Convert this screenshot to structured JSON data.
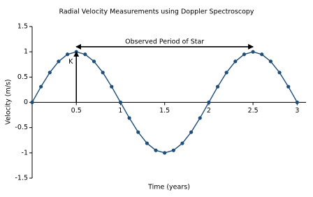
{
  "chart_data": {
    "type": "line",
    "title": "Radial Velocity Measurements using Doppler Spectroscopy",
    "x_label": "Time (years)",
    "y_label": "Velocity (m/s)",
    "x": [
      0,
      0.1,
      0.2,
      0.3,
      0.4,
      0.5,
      0.6,
      0.7,
      0.8,
      0.9,
      1,
      1.1,
      1.2,
      1.3,
      1.4,
      1.5,
      1.6,
      1.7,
      1.8,
      1.9,
      2,
      2.1,
      2.2,
      2.3,
      2.4,
      2.5,
      2.6,
      2.7,
      2.8,
      2.9,
      3
    ],
    "values": [
      0,
      0.31,
      0.59,
      0.81,
      0.95,
      1,
      0.95,
      0.81,
      0.59,
      0.31,
      0,
      -0.31,
      -0.59,
      -0.81,
      -0.95,
      -1,
      -0.95,
      -0.81,
      -0.59,
      -0.31,
      0,
      0.31,
      0.59,
      0.81,
      0.95,
      1,
      0.95,
      0.81,
      0.59,
      0.31,
      0
    ],
    "color": "#1f4e79",
    "xlim": [
      0,
      3.1
    ],
    "ylim": [
      -1.5,
      1.5
    ],
    "xticks": [
      0.5,
      1,
      1.5,
      2,
      2.5,
      3
    ],
    "yticks": [
      1.5,
      1,
      0.5,
      0,
      -0.5,
      -1,
      -1.5
    ],
    "annotations": [
      {
        "text": "Observed Period of Star",
        "x": [
          0.5,
          2.5
        ],
        "y": 1.1
      },
      {
        "text": "K",
        "x": 0.5,
        "y": [
          0,
          1
        ]
      }
    ]
  }
}
